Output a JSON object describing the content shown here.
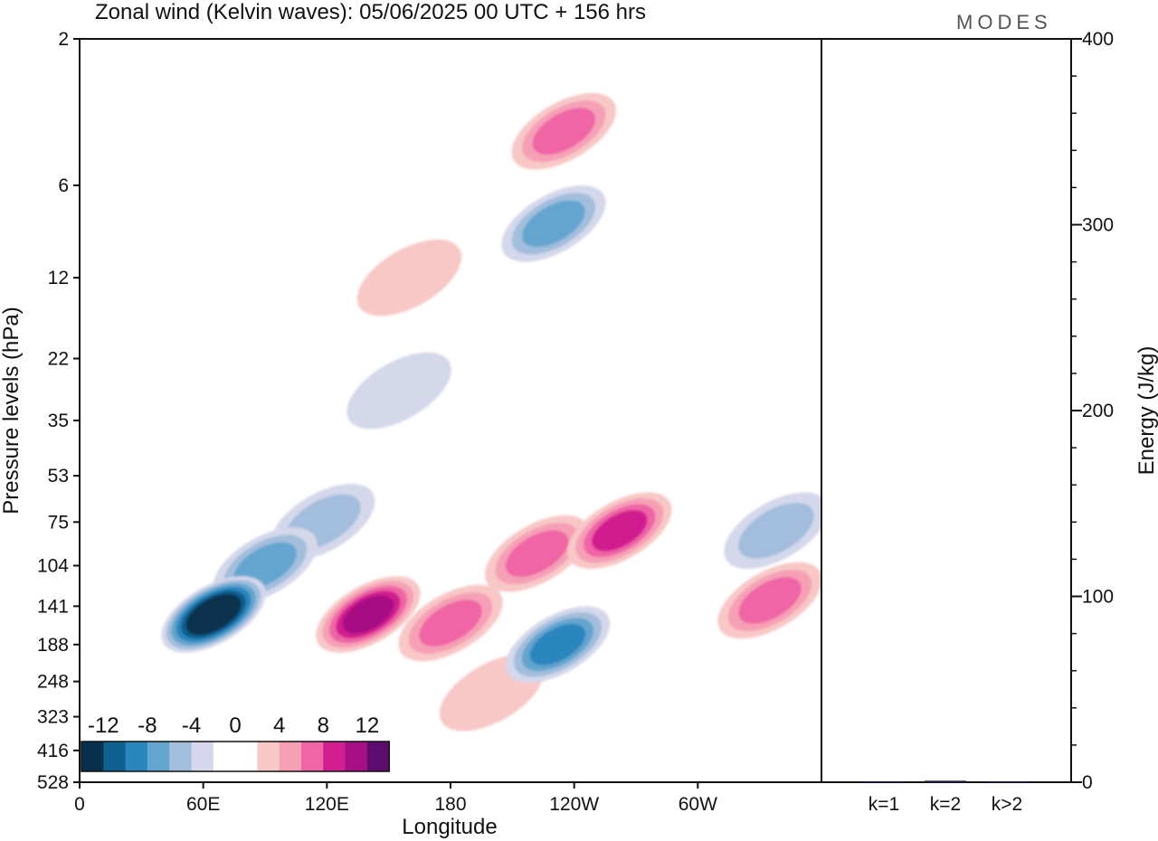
{
  "brand": "MODES",
  "title": "Zonal wind (Kelvin waves):  05/06/2025  00 UTC  + 156 hrs",
  "colors": {
    "neg": [
      "#08304d",
      "#0f5f8f",
      "#2b86bd",
      "#64a5cf",
      "#a3bedc",
      "#d4d8ea"
    ],
    "pos": [
      "#f8c8c6",
      "#f6a0b6",
      "#ef65a5",
      "#d11d8f",
      "#a60f83",
      "#5c0b6e"
    ],
    "line": "#111111"
  },
  "chart_data": [
    {
      "type": "heatmap",
      "title": "Zonal wind (Kelvin waves):  05/06/2025  00 UTC  + 156 hrs",
      "xlabel": "Longitude",
      "ylabel": "Pressure levels (hPa)",
      "x_ticks": [
        "0",
        "60E",
        "120E",
        "180",
        "120W",
        "60W"
      ],
      "x_tick_values": [
        0,
        60,
        120,
        180,
        240,
        300
      ],
      "xlim": [
        0,
        360
      ],
      "y_ticks": [
        "2",
        "6",
        "12",
        "22",
        "35",
        "53",
        "75",
        "104",
        "141",
        "188",
        "248",
        "323",
        "416",
        "528"
      ],
      "y_scale": "log (pressure), inverted",
      "colorbar_labels": [
        "-12",
        "-8",
        "-4",
        "0",
        "4",
        "8",
        "12"
      ],
      "contour_levels": [
        -14,
        -12,
        -10,
        -8,
        -6,
        -4,
        -2,
        2,
        4,
        6,
        8,
        10,
        12,
        14
      ],
      "features": [
        {
          "lon": 65,
          "p": 150,
          "u": -14
        },
        {
          "lon": 90,
          "p": 104,
          "u": -6
        },
        {
          "lon": 118,
          "p": 75,
          "u": -4
        },
        {
          "lon": 140,
          "p": 150,
          "u": 10
        },
        {
          "lon": 180,
          "p": 160,
          "u": 6
        },
        {
          "lon": 200,
          "p": 270,
          "u": 2
        },
        {
          "lon": 232,
          "p": 188,
          "u": -8
        },
        {
          "lon": 262,
          "p": 80,
          "u": 8
        },
        {
          "lon": 222,
          "p": 95,
          "u": 6
        },
        {
          "lon": 335,
          "p": 135,
          "u": 6
        },
        {
          "lon": 338,
          "p": 80,
          "u": -4
        },
        {
          "lon": 155,
          "p": 28,
          "u": -2
        },
        {
          "lon": 160,
          "p": 12,
          "u": 2
        },
        {
          "lon": 230,
          "p": 8,
          "u": -6
        },
        {
          "lon": 235,
          "p": 4,
          "u": 6
        }
      ]
    },
    {
      "type": "bar",
      "categories": [
        "k=1",
        "k=2",
        "k>2"
      ],
      "values": [
        0.5,
        0.8,
        0.4
      ],
      "ylabel": "Energy (J/kg)",
      "ylim": [
        0,
        400
      ],
      "y_ticks": [
        "0",
        "100",
        "200",
        "300",
        "400"
      ]
    }
  ]
}
